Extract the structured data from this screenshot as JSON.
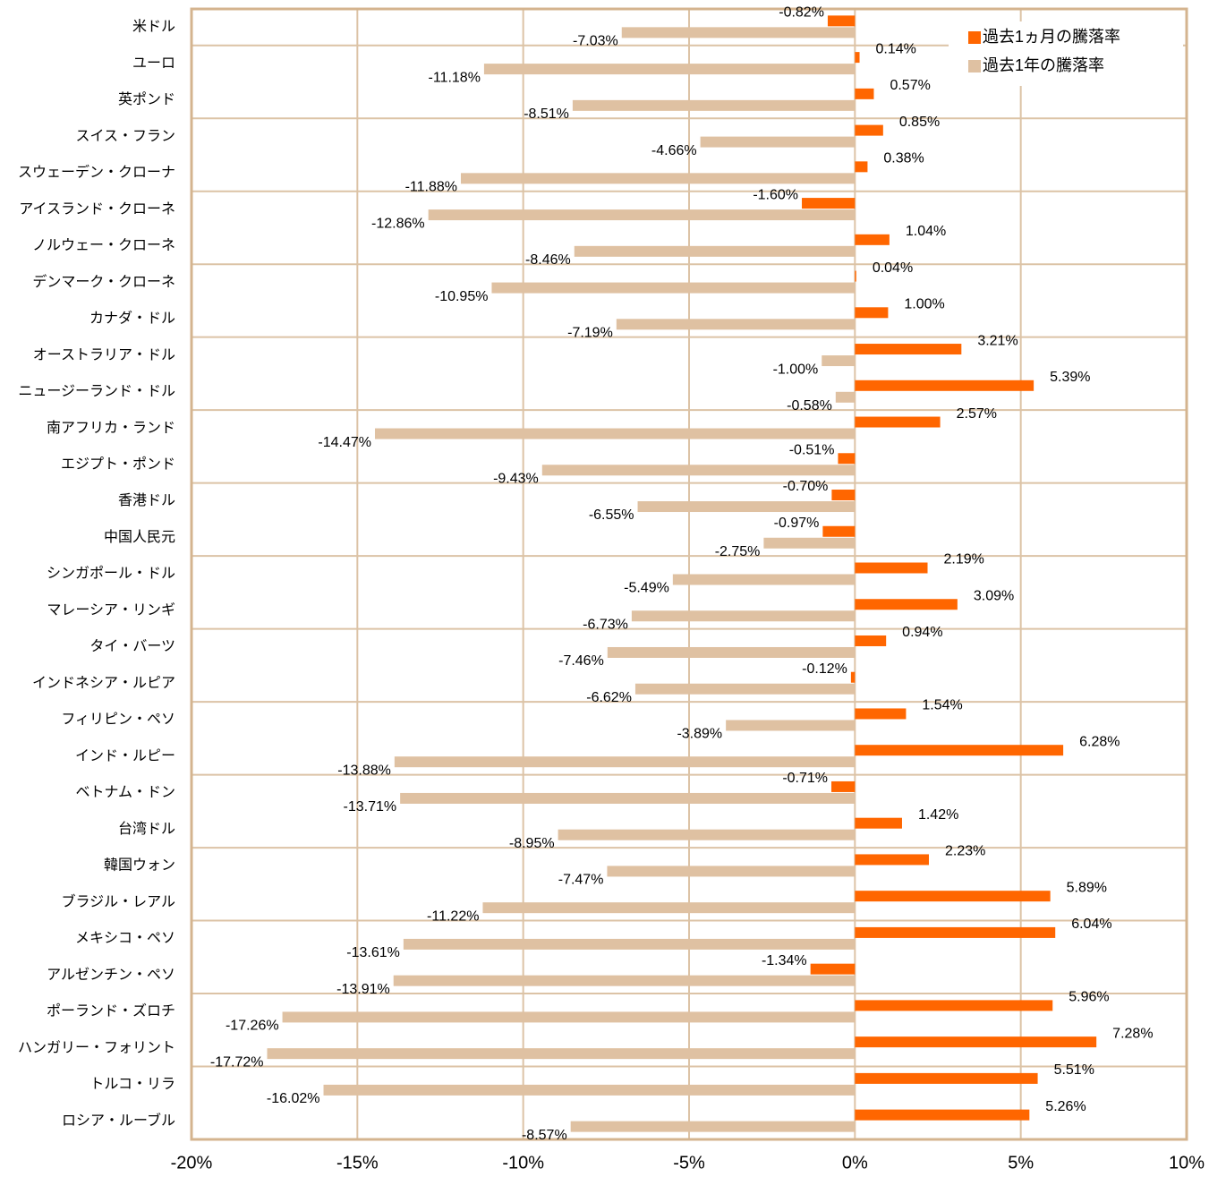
{
  "chart_data": {
    "type": "hbar",
    "categories": [
      "米ドル",
      "ユーロ",
      "英ポンド",
      "スイス・フラン",
      "スウェーデン・クローナ",
      "アイスランド・クローネ",
      "ノルウェー・クローネ",
      "デンマーク・クローネ",
      "カナダ・ドル",
      "オーストラリア・ドル",
      "ニュージーランド・ドル",
      "南アフリカ・ランド",
      "エジプト・ポンド",
      "香港ドル",
      "中国人民元",
      "シンガポール・ドル",
      "マレーシア・リンギ",
      "タイ・バーツ",
      "インドネシア・ルピア",
      "フィリピン・ペソ",
      "インド・ルピー",
      "ベトナム・ドン",
      "台湾ドル",
      "韓国ウォン",
      "ブラジル・レアル",
      "メキシコ・ペソ",
      "アルゼンチン・ペソ",
      "ポーランド・ズロチ",
      "ハンガリー・フォリント",
      "トルコ・リラ",
      "ロシア・ルーブル"
    ],
    "series": [
      {
        "name": "過去1ヵ月の騰落率",
        "color": "#ff6600",
        "values": [
          -0.82,
          0.14,
          0.57,
          0.85,
          0.38,
          -1.6,
          1.04,
          0.04,
          1.0,
          3.21,
          5.39,
          2.57,
          -0.51,
          -0.7,
          -0.97,
          2.19,
          3.09,
          0.94,
          -0.12,
          1.54,
          6.28,
          -0.71,
          1.42,
          2.23,
          5.89,
          6.04,
          -1.34,
          5.96,
          7.28,
          5.51,
          5.26
        ],
        "value_labels": [
          "-0.82%",
          "0.14%",
          "0.57%",
          "0.85%",
          "0.38%",
          "-1.60%",
          "1.04%",
          "0.04%",
          "1.00%",
          "3.21%",
          "5.39%",
          "2.57%",
          "-0.51%",
          "-0.70%",
          "-0.97%",
          "2.19%",
          "3.09%",
          "0.94%",
          "-0.12%",
          "1.54%",
          "6.28%",
          "-0.71%",
          "1.42%",
          "2.23%",
          "5.89%",
          "6.04%",
          "-1.34%",
          "5.96%",
          "7.28%",
          "5.51%",
          "5.26%"
        ]
      },
      {
        "name": "過去1年の騰落率",
        "color": "#dfc1a2",
        "values": [
          -7.03,
          -11.18,
          -8.51,
          -4.66,
          -11.88,
          -12.86,
          -8.46,
          -10.95,
          -7.19,
          -1.0,
          -0.58,
          -14.47,
          -9.43,
          -6.55,
          -2.75,
          -5.49,
          -6.73,
          -7.46,
          -6.62,
          -3.89,
          -13.88,
          -13.71,
          -8.95,
          -7.47,
          -11.22,
          -13.61,
          -13.91,
          -17.26,
          -17.72,
          -16.02,
          -8.57
        ],
        "value_labels": [
          "-7.03%",
          "-11.18%",
          "-8.51%",
          "-4.66%",
          "-11.88%",
          "-12.86%",
          "-8.46%",
          "-10.95%",
          "-7.19%",
          "-1.00%",
          "-0.58%",
          "-14.47%",
          "-9.43%",
          "-6.55%",
          "-2.75%",
          "-5.49%",
          "-6.73%",
          "-7.46%",
          "-6.62%",
          "-3.89%",
          "-13.88%",
          "-13.71%",
          "-8.95%",
          "-7.47%",
          "-11.22%",
          "-13.61%",
          "-13.91%",
          "-17.26%",
          "-17.72%",
          "-16.02%",
          "-8.57%"
        ]
      }
    ],
    "xlim": [
      -20,
      10
    ],
    "xticks": [
      {
        "value": -20,
        "label": "-20%"
      },
      {
        "value": -15,
        "label": "-15%"
      },
      {
        "value": -10,
        "label": "-10%"
      },
      {
        "value": -5,
        "label": "-5%"
      },
      {
        "value": 0,
        "label": "0%"
      },
      {
        "value": 5,
        "label": "5%"
      },
      {
        "value": 10,
        "label": "10%"
      }
    ],
    "grid": true,
    "legend": "upper right"
  }
}
